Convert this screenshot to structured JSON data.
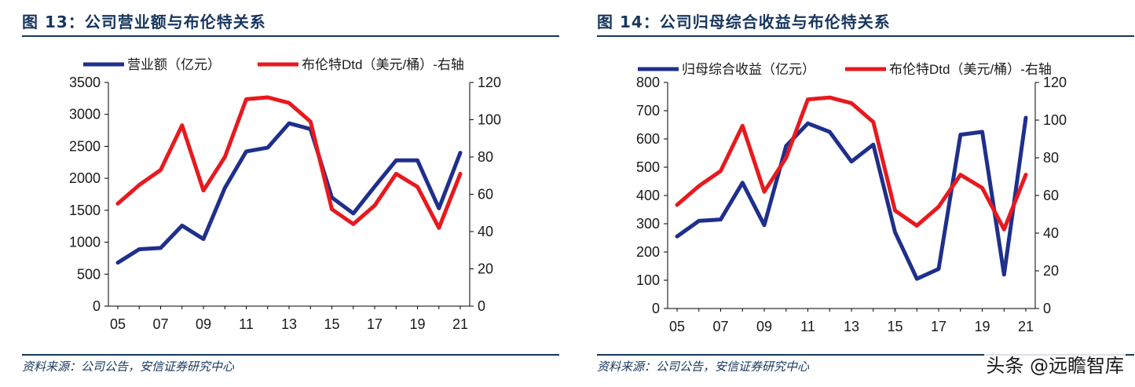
{
  "figures": [
    {
      "title": "图 13：公司营业额与布伦特关系",
      "source": "资料来源：公司公告，安信证券研究中心"
    },
    {
      "title": "图 14：公司归母综合收益与布伦特关系",
      "source": "资料来源：公司公告，安信证券研究中心"
    }
  ],
  "watermark": "头条 @远瞻智库",
  "chart_data": [
    {
      "type": "line",
      "x": [
        2005,
        2006,
        2007,
        2008,
        2009,
        2010,
        2011,
        2012,
        2013,
        2014,
        2015,
        2016,
        2017,
        2018,
        2019,
        2020,
        2021
      ],
      "xticks": [
        {
          "value": 2005,
          "label": "05"
        },
        {
          "value": 2007,
          "label": "07"
        },
        {
          "value": 2009,
          "label": "09"
        },
        {
          "value": 2011,
          "label": "11"
        },
        {
          "value": 2013,
          "label": "13"
        },
        {
          "value": 2015,
          "label": "15"
        },
        {
          "value": 2017,
          "label": "17"
        },
        {
          "value": 2019,
          "label": "19"
        },
        {
          "value": 2021,
          "label": "21"
        }
      ],
      "ylim_left": [
        0,
        3500
      ],
      "yticks_left": [
        0,
        500,
        1000,
        1500,
        2000,
        2500,
        3000,
        3500
      ],
      "ylim_right": [
        0,
        120
      ],
      "yticks_right": [
        0,
        20,
        40,
        60,
        80,
        100,
        120
      ],
      "legend_position": "top",
      "series": [
        {
          "name": "营业额（亿元）",
          "axis": "left",
          "color": "#1f2f8c",
          "values": [
            680,
            890,
            910,
            1260,
            1050,
            1850,
            2420,
            2480,
            2860,
            2770,
            1700,
            1450,
            1870,
            2280,
            2280,
            1530,
            2400
          ]
        },
        {
          "name": "布伦特Dtd（美元/桶）-右轴",
          "axis": "right",
          "color": "#e8191e",
          "values": [
            55,
            65,
            73,
            97,
            62,
            80,
            111,
            112,
            109,
            99,
            52,
            44,
            54,
            71,
            64,
            42,
            71
          ]
        }
      ]
    },
    {
      "type": "line",
      "x": [
        2005,
        2006,
        2007,
        2008,
        2009,
        2010,
        2011,
        2012,
        2013,
        2014,
        2015,
        2016,
        2017,
        2018,
        2019,
        2020,
        2021
      ],
      "xticks": [
        {
          "value": 2005,
          "label": "05"
        },
        {
          "value": 2007,
          "label": "07"
        },
        {
          "value": 2009,
          "label": "09"
        },
        {
          "value": 2011,
          "label": "11"
        },
        {
          "value": 2013,
          "label": "13"
        },
        {
          "value": 2015,
          "label": "15"
        },
        {
          "value": 2017,
          "label": "17"
        },
        {
          "value": 2019,
          "label": "19"
        },
        {
          "value": 2021,
          "label": "21"
        }
      ],
      "ylim_left": [
        0,
        800
      ],
      "yticks_left": [
        0,
        100,
        200,
        300,
        400,
        500,
        600,
        700,
        800
      ],
      "ylim_right": [
        0,
        120
      ],
      "yticks_right": [
        0,
        20,
        40,
        60,
        80,
        100,
        120
      ],
      "legend_position": "top",
      "series": [
        {
          "name": "归母综合收益（亿元）",
          "axis": "left",
          "color": "#1f2f8c",
          "values": [
            255,
            310,
            315,
            445,
            295,
            575,
            655,
            625,
            520,
            580,
            270,
            105,
            140,
            615,
            625,
            120,
            675
          ]
        },
        {
          "name": "布伦特Dtd（美元/桶）-右轴",
          "axis": "right",
          "color": "#e8191e",
          "values": [
            55,
            65,
            73,
            97,
            62,
            80,
            111,
            112,
            109,
            99,
            52,
            44,
            54,
            71,
            64,
            42,
            71
          ]
        }
      ]
    }
  ]
}
